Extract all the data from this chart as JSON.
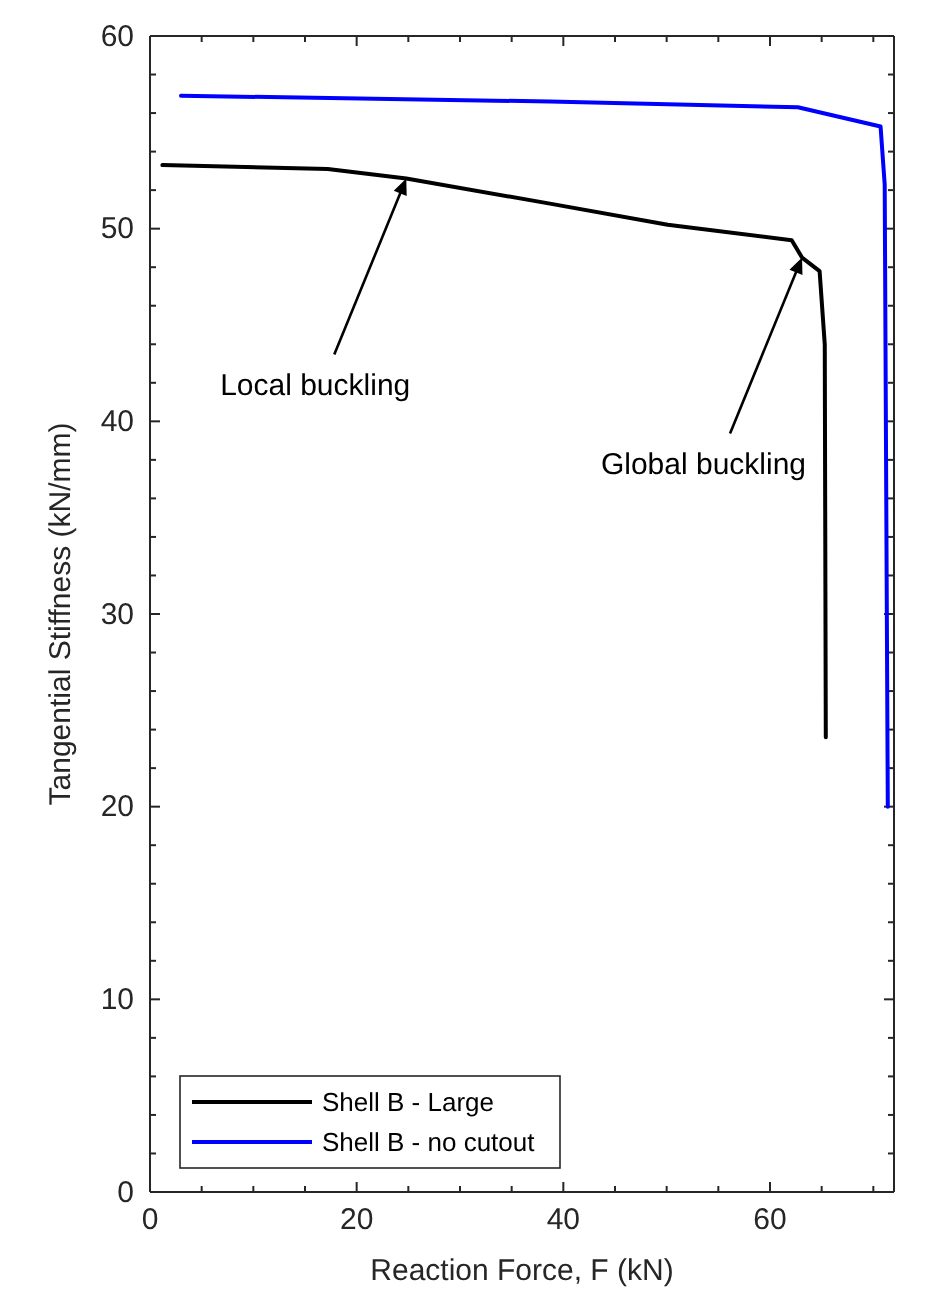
{
  "chart_data": {
    "type": "line",
    "xlabel": "Reaction Force, F (kN)",
    "ylabel": "Tangential Stiffness (kN/mm)",
    "xlim": [
      0,
      72
    ],
    "ylim": [
      0,
      60
    ],
    "xticks": [
      0,
      {
        "value": 5,
        "label": null
      },
      {
        "value": 10,
        "label": null
      },
      {
        "value": 15,
        "label": null
      },
      20,
      {
        "value": 25,
        "label": null
      },
      {
        "value": 30,
        "label": null
      },
      {
        "value": 35,
        "label": null
      },
      40,
      {
        "value": 45,
        "label": null
      },
      {
        "value": 50,
        "label": null
      },
      {
        "value": 55,
        "label": null
      },
      60,
      {
        "value": 65,
        "label": null
      },
      {
        "value": 70,
        "label": null
      }
    ],
    "yticks": [
      0,
      {
        "value": 2,
        "label": null
      },
      {
        "value": 4,
        "label": null
      },
      {
        "value": 6,
        "label": null
      },
      {
        "value": 8,
        "label": null
      },
      10,
      {
        "value": 12,
        "label": null
      },
      {
        "value": 14,
        "label": null
      },
      {
        "value": 16,
        "label": null
      },
      {
        "value": 18,
        "label": null
      },
      20,
      {
        "value": 22,
        "label": null
      },
      {
        "value": 24,
        "label": null
      },
      {
        "value": 26,
        "label": null
      },
      {
        "value": 28,
        "label": null
      },
      30,
      {
        "value": 32,
        "label": null
      },
      {
        "value": 34,
        "label": null
      },
      {
        "value": 36,
        "label": null
      },
      {
        "value": 38,
        "label": null
      },
      40,
      {
        "value": 42,
        "label": null
      },
      {
        "value": 44,
        "label": null
      },
      {
        "value": 46,
        "label": null
      },
      {
        "value": 48,
        "label": null
      },
      50,
      {
        "value": 52,
        "label": null
      },
      {
        "value": 54,
        "label": null
      },
      {
        "value": 56,
        "label": null
      },
      {
        "value": 58,
        "label": null
      },
      60
    ],
    "grid": false,
    "legend": "bottom left",
    "line_style": "solid",
    "series": [
      {
        "name": "Shell B - Large",
        "color": "#000000",
        "x": [
          1.2,
          17.2,
          24.8,
          38.7,
          50.1,
          62.1,
          63.1,
          64.8,
          65.3,
          65.4
        ],
        "values": [
          53.3,
          53.1,
          52.6,
          51.3,
          50.2,
          49.4,
          48.5,
          47.8,
          44.0,
          23.6
        ]
      },
      {
        "name": "Shell B - no cutout",
        "color": "#0000ff",
        "x": [
          3.0,
          38.7,
          62.7,
          70.7,
          71.1,
          71.4
        ],
        "values": [
          56.9,
          56.6,
          56.3,
          55.3,
          52.3,
          20.0
        ]
      }
    ],
    "annotations": [
      {
        "text": "Local buckling",
        "x": 24.8,
        "y": 52.6
      },
      {
        "text": "Global buckling",
        "x": 63.1,
        "y": 48.5
      }
    ]
  }
}
